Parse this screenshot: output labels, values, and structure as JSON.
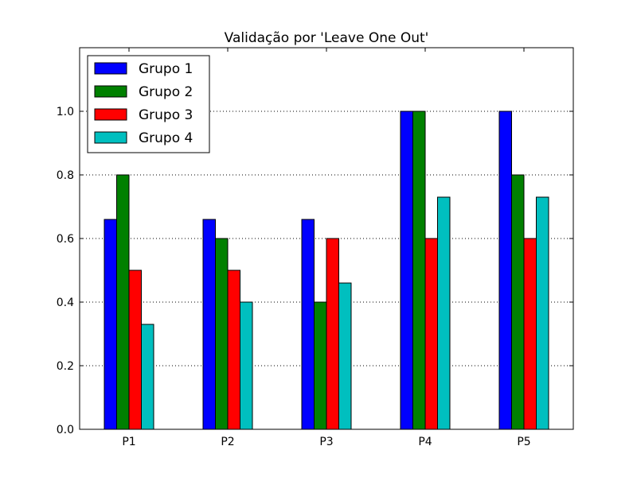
{
  "chart_data": {
    "type": "bar",
    "title": "Validação por 'Leave One Out'",
    "xlabel": "",
    "ylabel": "",
    "categories": [
      "P1",
      "P2",
      "P3",
      "P4",
      "P5"
    ],
    "series": [
      {
        "name": "Grupo 1",
        "color": "#0000ff",
        "values": [
          0.66,
          0.66,
          0.66,
          1.0,
          1.0
        ]
      },
      {
        "name": "Grupo 2",
        "color": "#008000",
        "values": [
          0.8,
          0.6,
          0.4,
          1.0,
          0.8
        ]
      },
      {
        "name": "Grupo 3",
        "color": "#ff0000",
        "values": [
          0.5,
          0.5,
          0.6,
          0.6,
          0.6
        ]
      },
      {
        "name": "Grupo 4",
        "color": "#00bfbf",
        "values": [
          0.33,
          0.4,
          0.46,
          0.73,
          0.73
        ]
      }
    ],
    "ylim": [
      0.0,
      1.2
    ],
    "yticks": [
      0.0,
      0.2,
      0.4,
      0.6,
      0.8,
      1.0
    ],
    "ytick_labels": [
      "0.0",
      "0.2",
      "0.4",
      "0.6",
      "0.8",
      "1.0"
    ],
    "grid": true,
    "grid_style": "dotted",
    "legend_position": "top-left"
  }
}
